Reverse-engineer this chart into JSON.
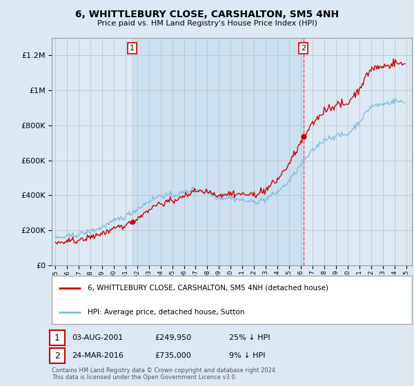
{
  "title": "6, WHITTLEBURY CLOSE, CARSHALTON, SM5 4NH",
  "subtitle": "Price paid vs. HM Land Registry's House Price Index (HPI)",
  "legend_line1": "6, WHITTLEBURY CLOSE, CARSHALTON, SM5 4NH (detached house)",
  "legend_line2": "HPI: Average price, detached house, Sutton",
  "transaction1_label": "1",
  "transaction1_date": "03-AUG-2001",
  "transaction1_price": "£249,950",
  "transaction1_hpi": "25% ↓ HPI",
  "transaction2_label": "2",
  "transaction2_date": "24-MAR-2016",
  "transaction2_price": "£735,000",
  "transaction2_hpi": "9% ↓ HPI",
  "footer": "Contains HM Land Registry data © Crown copyright and database right 2024.\nThis data is licensed under the Open Government Licence v3.0.",
  "hpi_color": "#7bbfdd",
  "price_color": "#cc0000",
  "marker_color": "#cc0000",
  "background_color": "#dce9f5",
  "shade_color": "#cce0f0",
  "grid_color": "#bbbbbb",
  "vline1_color": "#aaaaaa",
  "vline2_color": "#ee5555",
  "ylim": [
    0,
    1300000
  ],
  "yticks": [
    0,
    200000,
    400000,
    600000,
    800000,
    1000000,
    1200000
  ],
  "xlim_start": 1994.7,
  "xlim_end": 2025.5,
  "transaction1_x": 2001.58,
  "transaction1_y": 249950,
  "transaction2_x": 2016.22,
  "transaction2_y": 735000
}
